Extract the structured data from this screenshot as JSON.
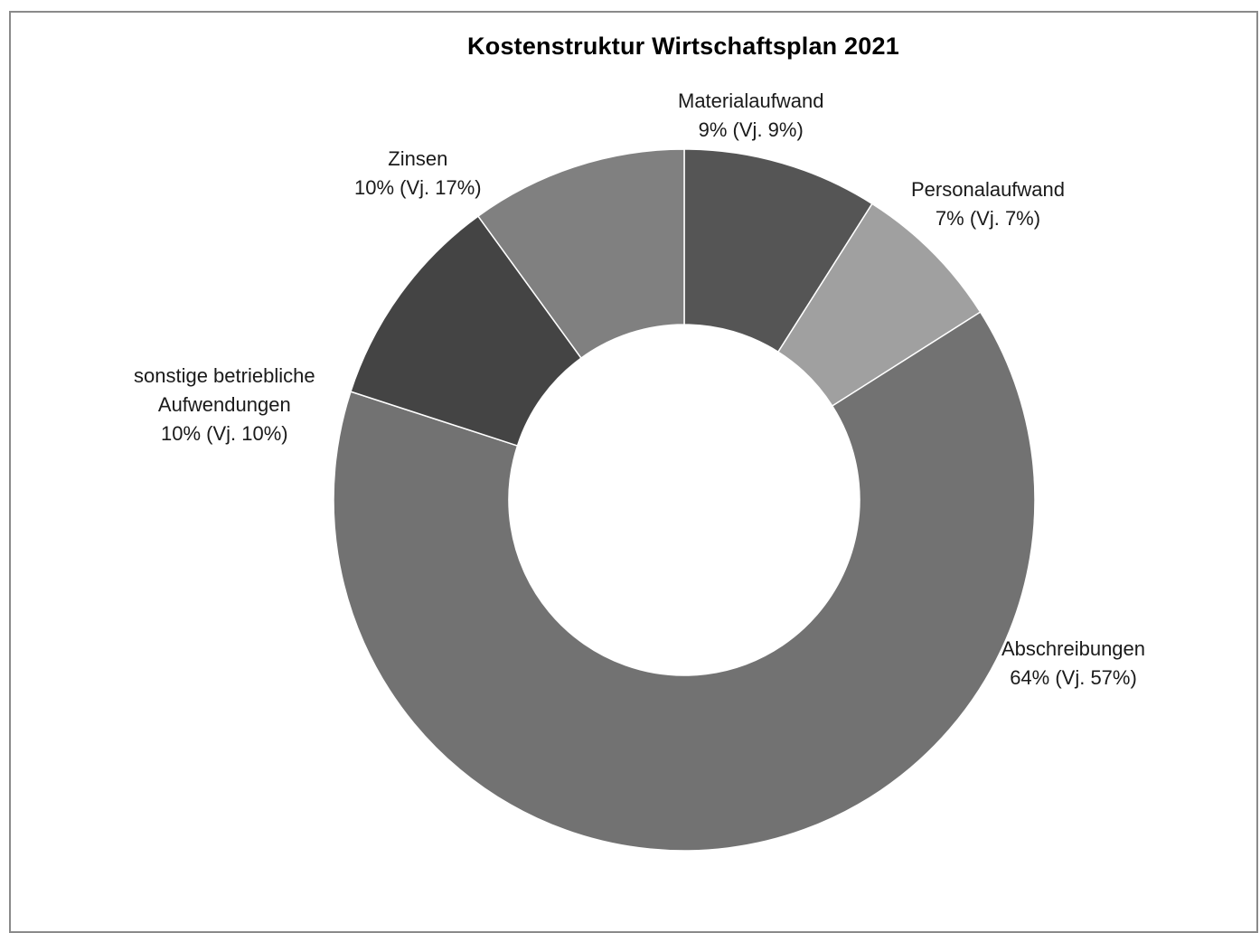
{
  "chart_data": {
    "type": "pie",
    "style": "donut",
    "title": "Kostenstruktur Wirtschaftsplan 2021",
    "start_angle_deg": 0,
    "direction": "clockwise",
    "slices": [
      {
        "name": "Materialaufwand",
        "value": 9,
        "label_line1": "Materialaufwand",
        "label_line2": "9% (Vj. 9%)",
        "color": "#555555"
      },
      {
        "name": "Personalaufwand",
        "value": 7,
        "label_line1": "Personalaufwand",
        "label_line2": "7% (Vj. 7%)",
        "color": "#a0a0a0"
      },
      {
        "name": "Abschreibungen",
        "value": 64,
        "label_line1": "Abschreibungen",
        "label_line2": "64% (Vj. 57%)",
        "color": "#727272"
      },
      {
        "name": "sonstige betriebliche Aufwendungen",
        "value": 10,
        "label_line1": "sonstige betriebliche",
        "label_line1b": "Aufwendungen",
        "label_line2": "10% (Vj. 10%)",
        "color": "#444444"
      },
      {
        "name": "Zinsen",
        "value": 10,
        "label_line1": "Zinsen",
        "label_line2": "10% (Vj. 17%)",
        "color": "#808080"
      }
    ]
  }
}
